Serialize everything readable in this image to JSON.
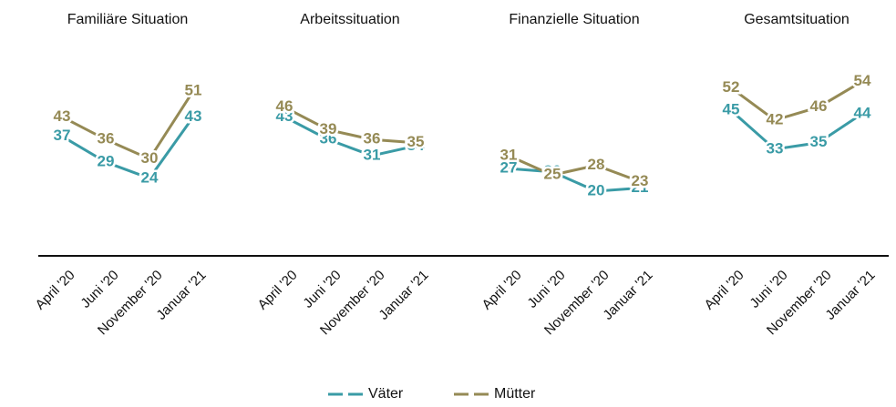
{
  "chart_data": [
    {
      "type": "line",
      "title": "Familiäre Situation",
      "categories": [
        "April '20",
        "Juni '20",
        "November '20",
        "Januar '21"
      ],
      "ylim": [
        0,
        60
      ],
      "series": [
        {
          "name": "Väter",
          "color": "#3a9ba6",
          "values": [
            37,
            29,
            24,
            43
          ]
        },
        {
          "name": "Mütter",
          "color": "#958a55",
          "values": [
            43,
            36,
            30,
            51
          ]
        }
      ]
    },
    {
      "type": "line",
      "title": "Arbeitssituation",
      "categories": [
        "April '20",
        "Juni '20",
        "November '20",
        "Januar '21"
      ],
      "ylim": [
        0,
        60
      ],
      "series": [
        {
          "name": "Väter",
          "color": "#3a9ba6",
          "values": [
            43,
            36,
            31,
            34
          ]
        },
        {
          "name": "Mütter",
          "color": "#958a55",
          "values": [
            46,
            39,
            36,
            35
          ]
        }
      ]
    },
    {
      "type": "line",
      "title": "Finanzielle Situation",
      "categories": [
        "April '20",
        "Juni '20",
        "November '20",
        "Januar '21"
      ],
      "ylim": [
        0,
        60
      ],
      "series": [
        {
          "name": "Väter",
          "color": "#3a9ba6",
          "values": [
            27,
            26,
            20,
            21
          ]
        },
        {
          "name": "Mütter",
          "color": "#958a55",
          "values": [
            31,
            25,
            28,
            23
          ]
        }
      ]
    },
    {
      "type": "line",
      "title": "Gesamtsituation",
      "categories": [
        "April '20",
        "Juni '20",
        "November '20",
        "Januar '21"
      ],
      "ylim": [
        0,
        60
      ],
      "series": [
        {
          "name": "Väter",
          "color": "#3a9ba6",
          "values": [
            45,
            33,
            35,
            44
          ]
        },
        {
          "name": "Mütter",
          "color": "#958a55",
          "values": [
            52,
            42,
            46,
            54
          ]
        }
      ]
    }
  ]
}
